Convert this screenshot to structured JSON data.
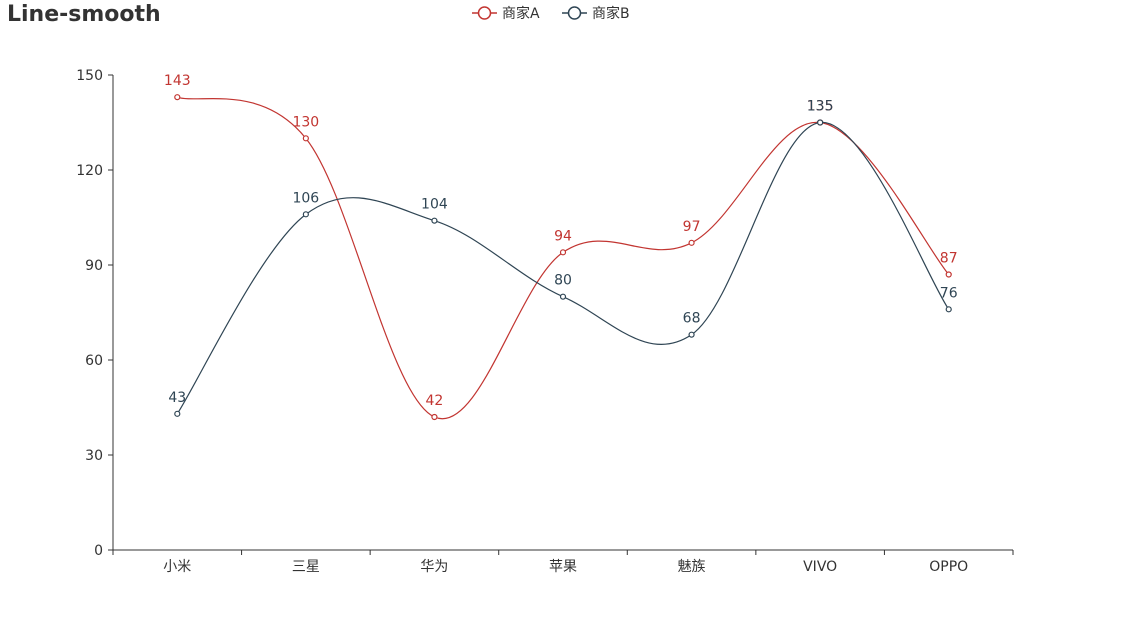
{
  "chart_data": {
    "type": "line",
    "title": "Line-smooth",
    "categories": [
      "小米",
      "三星",
      "华为",
      "苹果",
      "魅族",
      "VIVO",
      "OPPO"
    ],
    "series": [
      {
        "name": "商家A",
        "values": [
          143,
          130,
          42,
          94,
          97,
          135,
          87
        ],
        "color": "#c23531"
      },
      {
        "name": "商家B",
        "values": [
          43,
          106,
          104,
          80,
          68,
          135,
          76
        ],
        "color": "#2f4554"
      }
    ],
    "ylim": [
      0,
      150
    ],
    "yticks": [
      0,
      30,
      60,
      90,
      120,
      150
    ],
    "smooth": true,
    "grid": false,
    "legend_position": "top-center",
    "xlabel": "",
    "ylabel": ""
  }
}
